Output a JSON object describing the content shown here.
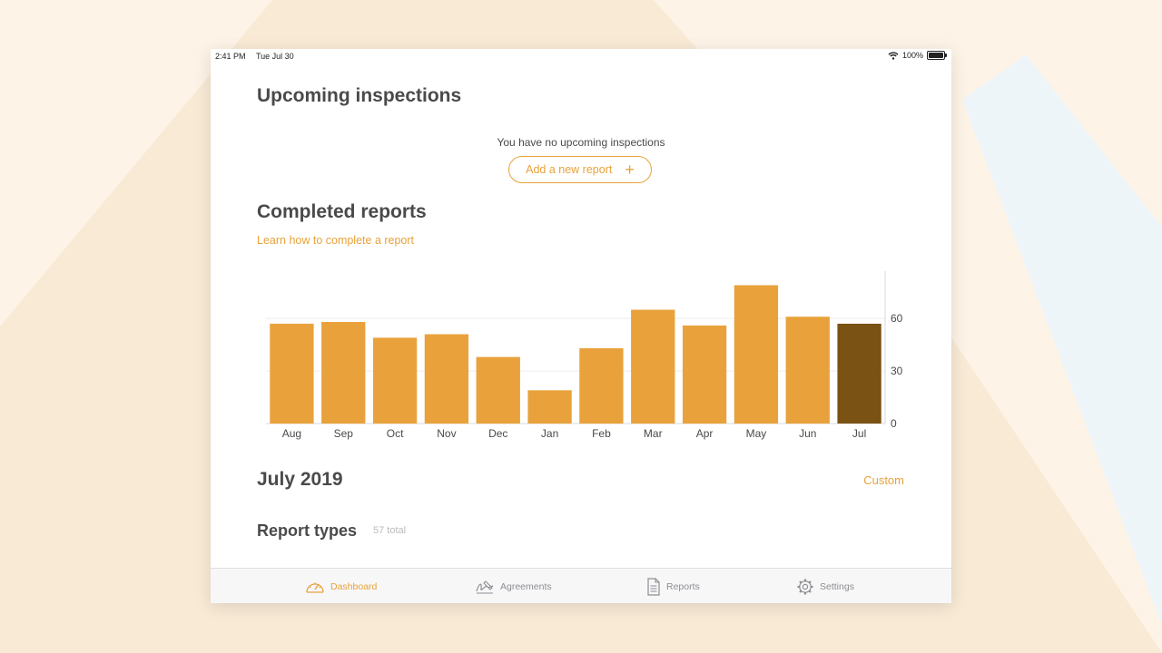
{
  "status_bar": {
    "time": "2:41 PM",
    "date": "Tue Jul 30",
    "battery": "100%"
  },
  "upcoming": {
    "title": "Upcoming inspections",
    "empty_message": "You have no upcoming inspections",
    "add_button_label": "Add a new report"
  },
  "completed": {
    "title": "Completed reports",
    "learn_link": "Learn how to complete a report"
  },
  "chart_data": {
    "type": "bar",
    "categories": [
      "Aug",
      "Sep",
      "Oct",
      "Nov",
      "Dec",
      "Jan",
      "Feb",
      "Mar",
      "Apr",
      "May",
      "Jun",
      "Jul"
    ],
    "values": [
      57,
      58,
      49,
      51,
      38,
      19,
      43,
      65,
      56,
      79,
      61,
      57
    ],
    "yticks": [
      0,
      30,
      60
    ],
    "ylim": [
      0,
      87
    ],
    "y_axis_position": "right",
    "grid": true,
    "bar_color": "#e9a23b",
    "highlight_category": "Jul",
    "highlight_color": "#7a5214"
  },
  "period": {
    "title": "July 2019",
    "custom_label": "Custom"
  },
  "report_types": {
    "title": "Report types",
    "total": "57 total"
  },
  "tabbar": {
    "items": [
      {
        "label": "Dashboard",
        "icon": "speedometer-icon",
        "active": true
      },
      {
        "label": "Agreements",
        "icon": "signature-icon",
        "active": false
      },
      {
        "label": "Reports",
        "icon": "document-icon",
        "active": false
      },
      {
        "label": "Settings",
        "icon": "gear-icon",
        "active": false
      }
    ]
  },
  "colors": {
    "accent": "#e9a23b",
    "heading": "#4a4a4a",
    "inactive_tab": "#8e8e93"
  }
}
